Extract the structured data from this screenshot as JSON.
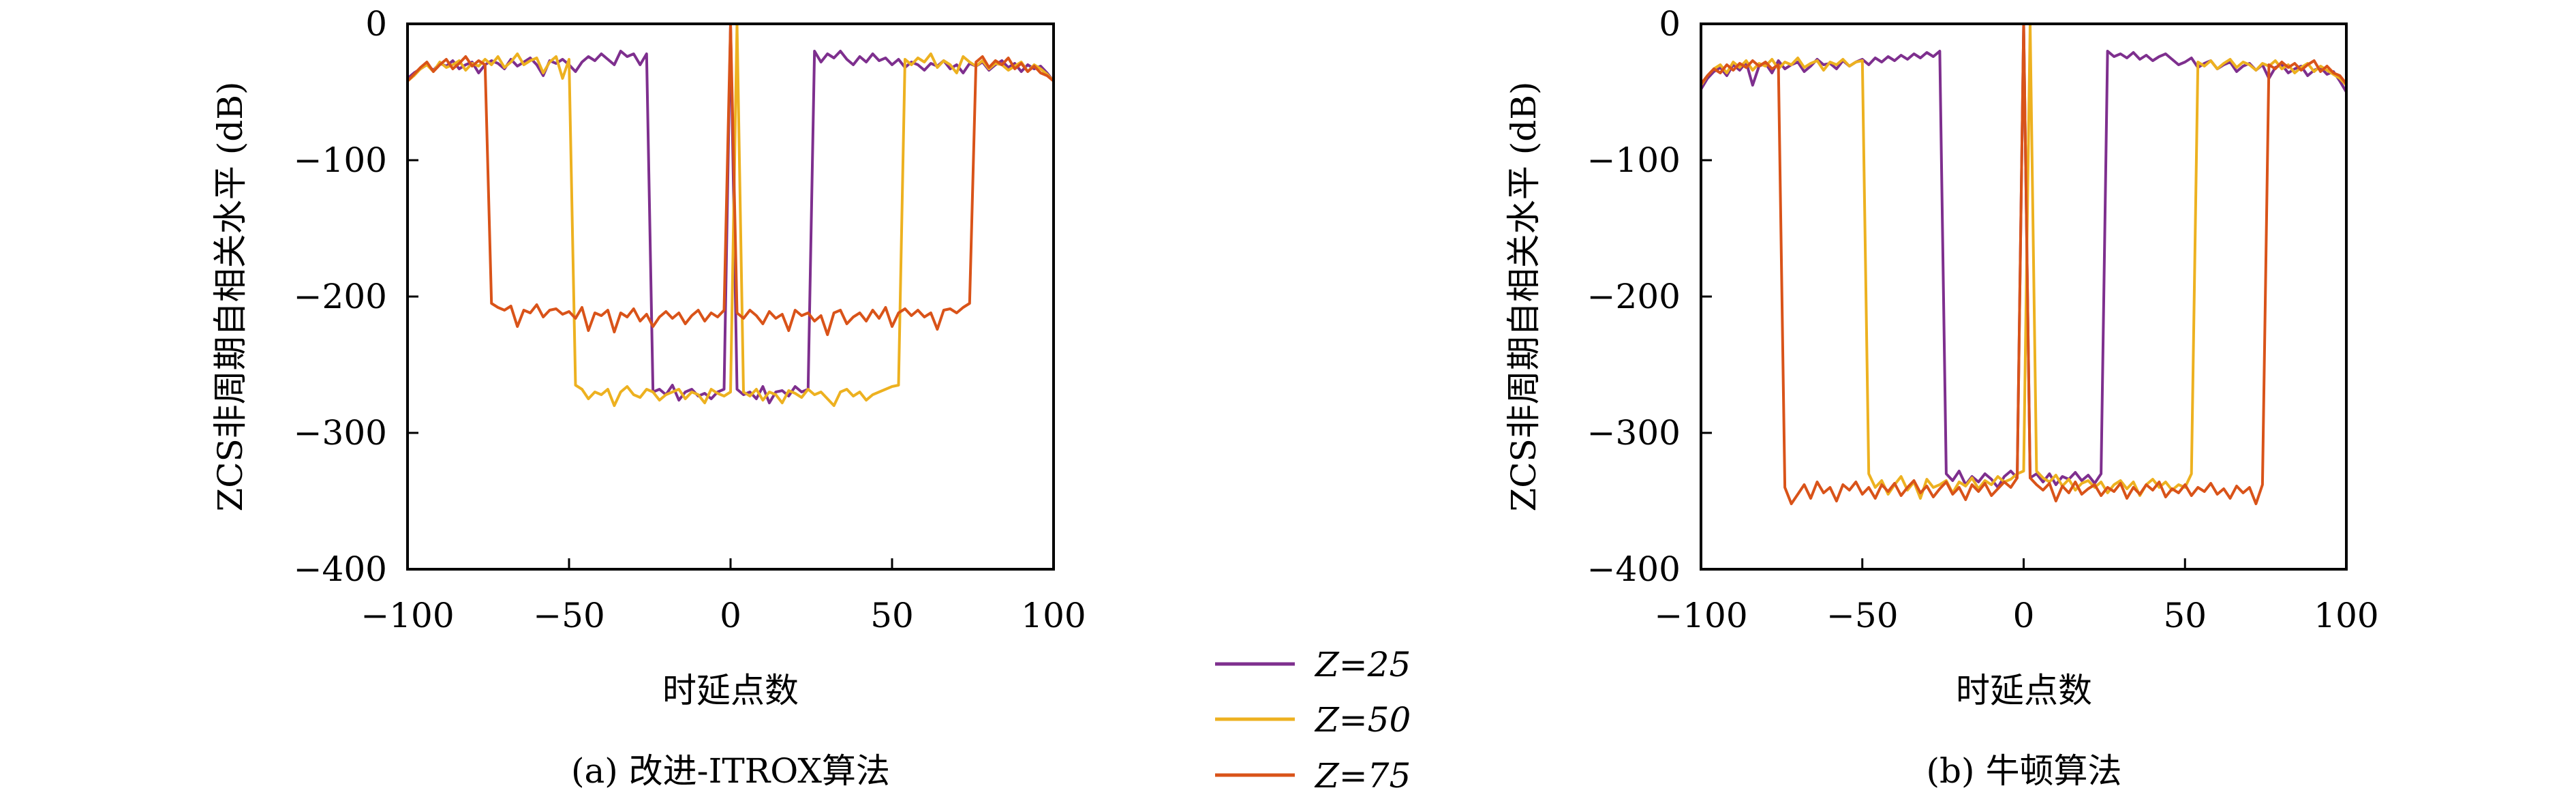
{
  "legend": [
    {
      "label": "Z=25",
      "color": "#7E2F8E"
    },
    {
      "label": "Z=50",
      "color": "#EDB120"
    },
    {
      "label": "Z=75",
      "color": "#D95319"
    }
  ],
  "chart_data": [
    {
      "type": "line",
      "caption": "(a) 改进-ITROX算法",
      "xlabel": "时延点数",
      "ylabel": "ZCS非周期自相关水平 (dB)",
      "xlim": [
        -100,
        100
      ],
      "ylim": [
        -400,
        0
      ],
      "xticks": [
        -100,
        -50,
        0,
        50,
        100
      ],
      "yticks": [
        0,
        -100,
        -200,
        -300,
        -400
      ],
      "grid": false,
      "x_start": -100,
      "x_step": 2,
      "series": [
        {
          "name": "Z=25",
          "color": "#7E2F8E",
          "values": [
            -40,
            -36,
            -33,
            -30,
            -34,
            -29,
            -31,
            -27,
            -33,
            -30,
            -28,
            -36,
            -30,
            -27,
            -29,
            -33,
            -26,
            -31,
            -28,
            -25,
            -30,
            -38,
            -27,
            -29,
            -26,
            -30,
            -35,
            -28,
            -24,
            -27,
            -22,
            -26,
            -30,
            -20,
            -24,
            -22,
            -30,
            -22,
            -270,
            -268,
            -272,
            -265,
            -276,
            -270,
            -268,
            -273,
            -271,
            -275,
            -270,
            -268,
            0,
            -268,
            -272,
            -270,
            -275,
            -266,
            -278,
            -270,
            -269,
            -273,
            -266,
            -270,
            -268,
            -20,
            -28,
            -22,
            -25,
            -20,
            -26,
            -30,
            -24,
            -28,
            -22,
            -27,
            -25,
            -30,
            -26,
            -32,
            -28,
            -30,
            -34,
            -29,
            -31,
            -27,
            -33,
            -30,
            -36,
            -29,
            -31,
            -28,
            -34,
            -30,
            -27,
            -32,
            -29,
            -35,
            -30,
            -33,
            -31,
            -36,
            -42
          ]
        },
        {
          "name": "Z=50",
          "color": "#EDB120",
          "values": [
            -42,
            -38,
            -33,
            -30,
            -35,
            -28,
            -32,
            -30,
            -27,
            -34,
            -29,
            -31,
            -26,
            -30,
            -24,
            -32,
            -28,
            -22,
            -30,
            -27,
            -25,
            -36,
            -28,
            -24,
            -40,
            -26,
            -265,
            -268,
            -275,
            -270,
            -272,
            -268,
            -280,
            -270,
            -266,
            -272,
            -274,
            -268,
            -270,
            -276,
            -272,
            -270,
            -268,
            -275,
            -270,
            -272,
            -278,
            -268,
            -271,
            -273,
            -270,
            0,
            -270,
            -273,
            -268,
            -276,
            -270,
            -272,
            -278,
            -269,
            -271,
            -274,
            -268,
            -272,
            -270,
            -275,
            -280,
            -270,
            -268,
            -273,
            -270,
            -276,
            -272,
            -270,
            -268,
            -266,
            -265,
            -26,
            -30,
            -25,
            -28,
            -22,
            -32,
            -27,
            -30,
            -36,
            -24,
            -28,
            -31,
            -27,
            -33,
            -29,
            -30,
            -34,
            -31,
            -28,
            -35,
            -30,
            -33,
            -37,
            -42
          ]
        },
        {
          "name": "Z=75",
          "color": "#D95319",
          "values": [
            -42,
            -37,
            -32,
            -28,
            -35,
            -30,
            -26,
            -33,
            -29,
            -24,
            -31,
            -27,
            -30,
            -205,
            -208,
            -210,
            -207,
            -222,
            -210,
            -212,
            -206,
            -215,
            -210,
            -209,
            -213,
            -211,
            -216,
            -208,
            -225,
            -212,
            -214,
            -210,
            -226,
            -212,
            -215,
            -209,
            -218,
            -213,
            -222,
            -215,
            -211,
            -216,
            -212,
            -220,
            -214,
            -210,
            -218,
            -212,
            -215,
            -210,
            0,
            -212,
            -216,
            -210,
            -214,
            -220,
            -211,
            -216,
            -213,
            -225,
            -210,
            -214,
            -212,
            -218,
            -214,
            -228,
            -212,
            -210,
            -220,
            -215,
            -212,
            -218,
            -210,
            -216,
            -208,
            -222,
            -212,
            -209,
            -214,
            -210,
            -215,
            -212,
            -224,
            -210,
            -209,
            -212,
            -208,
            -205,
            -28,
            -24,
            -32,
            -27,
            -30,
            -25,
            -33,
            -29,
            -35,
            -31,
            -36,
            -38,
            -42
          ]
        }
      ]
    },
    {
      "type": "line",
      "caption": "(b) 牛顿算法",
      "xlabel": "时延点数",
      "ylabel": "ZCS非周期自相关水平 (dB)",
      "xlim": [
        -100,
        100
      ],
      "ylim": [
        -400,
        0
      ],
      "xticks": [
        -100,
        -50,
        0,
        50,
        100
      ],
      "yticks": [
        0,
        -100,
        -200,
        -300,
        -400
      ],
      "grid": false,
      "x_start": -100,
      "x_step": 2,
      "series": [
        {
          "name": "Z=25",
          "color": "#7E2F8E",
          "values": [
            -48,
            -40,
            -35,
            -32,
            -38,
            -30,
            -34,
            -28,
            -45,
            -31,
            -29,
            -36,
            -27,
            -33,
            -30,
            -28,
            -35,
            -31,
            -26,
            -30,
            -29,
            -33,
            -27,
            -31,
            -28,
            -26,
            -30,
            -25,
            -28,
            -24,
            -27,
            -23,
            -26,
            -22,
            -25,
            -21,
            -24,
            -20,
            -330,
            -335,
            -328,
            -338,
            -332,
            -336,
            -330,
            -334,
            -340,
            -332,
            -328,
            -333,
            0,
            -333,
            -330,
            -336,
            -330,
            -338,
            -332,
            -334,
            -329,
            -335,
            -331,
            -337,
            -330,
            -20,
            -24,
            -22,
            -25,
            -21,
            -26,
            -23,
            -27,
            -24,
            -22,
            -26,
            -30,
            -28,
            -25,
            -32,
            -29,
            -27,
            -33,
            -30,
            -28,
            -35,
            -31,
            -29,
            -34,
            -30,
            -40,
            -32,
            -30,
            -36,
            -33,
            -31,
            -38,
            -34,
            -32,
            -37,
            -35,
            -42,
            -50
          ]
        },
        {
          "name": "Z=50",
          "color": "#EDB120",
          "values": [
            -45,
            -38,
            -33,
            -30,
            -36,
            -28,
            -32,
            -27,
            -34,
            -29,
            -31,
            -26,
            -33,
            -28,
            -30,
            -25,
            -32,
            -29,
            -27,
            -34,
            -28,
            -30,
            -26,
            -31,
            -28,
            -27,
            -330,
            -340,
            -335,
            -345,
            -338,
            -332,
            -342,
            -336,
            -348,
            -334,
            -340,
            -338,
            -335,
            -344,
            -336,
            -339,
            -333,
            -341,
            -335,
            -338,
            -332,
            -336,
            -334,
            -330,
            -328,
            0,
            -328,
            -333,
            -336,
            -331,
            -339,
            -334,
            -342,
            -337,
            -335,
            -340,
            -336,
            -344,
            -338,
            -335,
            -341,
            -336,
            -346,
            -338,
            -334,
            -340,
            -336,
            -342,
            -338,
            -340,
            -330,
            -28,
            -31,
            -27,
            -33,
            -29,
            -26,
            -32,
            -28,
            -30,
            -34,
            -29,
            -31,
            -27,
            -33,
            -30,
            -36,
            -32,
            -29,
            -35,
            -31,
            -34,
            -37,
            -40,
            -45
          ]
        },
        {
          "name": "Z=75",
          "color": "#D95319",
          "values": [
            -44,
            -38,
            -33,
            -36,
            -30,
            -34,
            -29,
            -32,
            -27,
            -31,
            -28,
            -33,
            -30,
            -340,
            -352,
            -345,
            -338,
            -348,
            -336,
            -344,
            -340,
            -350,
            -338,
            -342,
            -336,
            -345,
            -340,
            -348,
            -338,
            -343,
            -337,
            -346,
            -340,
            -335,
            -344,
            -339,
            -347,
            -341,
            -336,
            -345,
            -340,
            -349,
            -338,
            -343,
            -337,
            -346,
            -341,
            -336,
            -340,
            -333,
            0,
            -333,
            -338,
            -342,
            -337,
            -350,
            -339,
            -344,
            -336,
            -345,
            -341,
            -338,
            -346,
            -340,
            -343,
            -337,
            -348,
            -340,
            -345,
            -338,
            -342,
            -336,
            -347,
            -341,
            -344,
            -338,
            -346,
            -340,
            -343,
            -337,
            -345,
            -341,
            -348,
            -339,
            -344,
            -340,
            -352,
            -338,
            -30,
            -33,
            -28,
            -32,
            -29,
            -34,
            -30,
            -27,
            -35,
            -31,
            -36,
            -38,
            -44
          ]
        }
      ]
    }
  ]
}
